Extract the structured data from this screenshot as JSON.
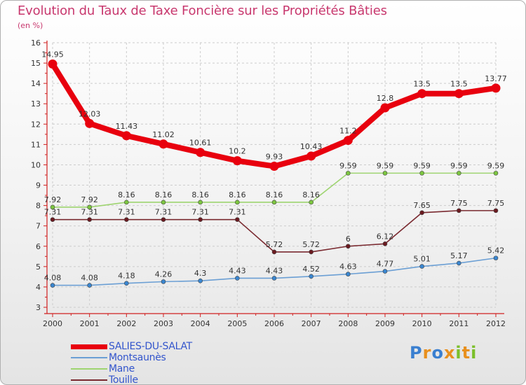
{
  "title": "Evolution du Taux de Taxe Foncière sur les Propriétés Bâties",
  "unit_label": "(en %)",
  "logo": {
    "letters": [
      "P",
      "r",
      "o",
      "x",
      "i",
      "t",
      "i"
    ],
    "colors": [
      "#3a7fd0",
      "#e8901e",
      "#3a7fd0",
      "#e8901e",
      "#7bbf2a",
      "#e8901e",
      "#7bbf2a"
    ]
  },
  "chart_data": {
    "type": "line",
    "x": [
      "2000",
      "2001",
      "2002",
      "2003",
      "2004",
      "2005",
      "2006",
      "2007",
      "2008",
      "2009",
      "2010",
      "2011",
      "2012"
    ],
    "ylim": [
      3,
      16
    ],
    "yticks": [
      "3",
      "4",
      "5",
      "6",
      "7",
      "8",
      "9",
      "10",
      "11",
      "12",
      "13",
      "14",
      "15",
      "16"
    ],
    "grid": true,
    "legend_position": "bottom-left",
    "series": [
      {
        "name": "SALIES-DU-SALAT",
        "color": "#e8000e",
        "marker_color": "#e8000e",
        "emphasis": true,
        "values": [
          14.95,
          12.03,
          11.43,
          11.02,
          10.61,
          10.2,
          9.93,
          10.43,
          11.2,
          12.8,
          13.5,
          13.5,
          13.77
        ],
        "labels": [
          "14.95",
          "12.03",
          "11.43",
          "11.02",
          "10.61",
          "10.2",
          "9.93",
          "10.43",
          "11.2",
          "12.8",
          "13.5",
          "13.5",
          "13.77"
        ]
      },
      {
        "name": "Montsaunès",
        "color": "#6b9fd4",
        "marker_color": "#3a86d0",
        "values": [
          4.08,
          4.08,
          4.18,
          4.26,
          4.3,
          4.43,
          4.43,
          4.52,
          4.63,
          4.77,
          5.01,
          5.17,
          5.42
        ],
        "labels": [
          "4.08",
          "4.08",
          "4.18",
          "4.26",
          "4.3",
          "4.43",
          "4.43",
          "4.52",
          "4.63",
          "4.77",
          "5.01",
          "5.17",
          "5.42"
        ]
      },
      {
        "name": "Mane",
        "color": "#9ed470",
        "marker_color": "#7cc640",
        "values": [
          7.92,
          7.92,
          8.16,
          8.16,
          8.16,
          8.16,
          8.16,
          8.16,
          9.59,
          9.59,
          9.59,
          9.59,
          9.59
        ],
        "labels": [
          "7.92",
          "7.92",
          "8.16",
          "8.16",
          "8.16",
          "8.16",
          "8.16",
          "8.16",
          "9.59",
          "9.59",
          "9.59",
          "9.59",
          "9.59"
        ]
      },
      {
        "name": "Touille",
        "color": "#7a2a30",
        "marker_color": "#6b1a20",
        "values": [
          7.31,
          7.31,
          7.31,
          7.31,
          7.31,
          7.31,
          5.72,
          5.72,
          6,
          6.12,
          7.65,
          7.75,
          7.75
        ],
        "labels": [
          "7.31",
          "7.31",
          "7.31",
          "7.31",
          "7.31",
          "7.31",
          "5.72",
          "5.72",
          "6",
          "6.12",
          "7.65",
          "7.75",
          "7.75"
        ]
      }
    ]
  }
}
